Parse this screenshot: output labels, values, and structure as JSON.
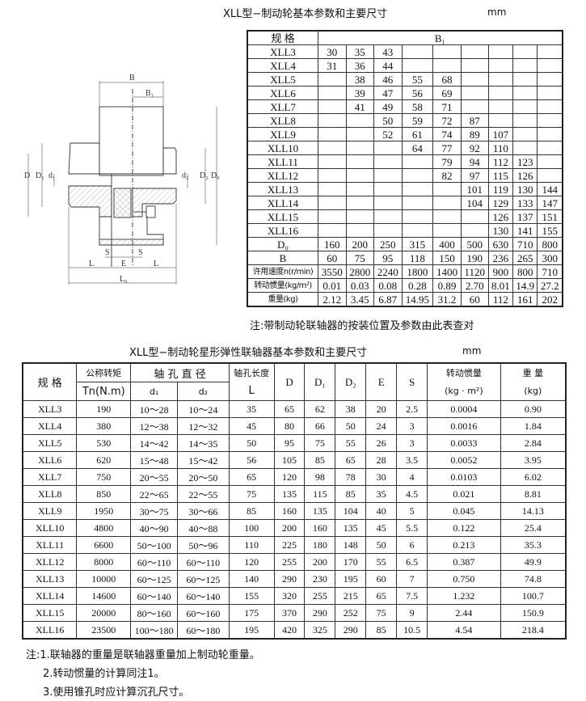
{
  "top": {
    "title": "XLL型−制动轮基本参数和主要尺寸",
    "unit": "mm",
    "header_label": "规 格",
    "header_b1": "B₁",
    "rows": [
      {
        "model": "XLL3",
        "values": [
          "30",
          "35",
          "43",
          "",
          "",
          "",
          "",
          "",
          ""
        ]
      },
      {
        "model": "XLL4",
        "values": [
          "31",
          "36",
          "44",
          "",
          "",
          "",
          "",
          "",
          ""
        ]
      },
      {
        "model": "XLL5",
        "values": [
          "",
          "38",
          "46",
          "55",
          "68",
          "",
          "",
          "",
          ""
        ]
      },
      {
        "model": "XLL6",
        "values": [
          "",
          "39",
          "47",
          "56",
          "69",
          "",
          "",
          "",
          ""
        ]
      },
      {
        "model": "XLL7",
        "values": [
          "",
          "41",
          "49",
          "58",
          "71",
          "",
          "",
          "",
          ""
        ]
      },
      {
        "model": "XLL8",
        "values": [
          "",
          "",
          "50",
          "59",
          "72",
          "87",
          "",
          "",
          ""
        ]
      },
      {
        "model": "XLL9",
        "values": [
          "",
          "",
          "52",
          "61",
          "74",
          "89",
          "107",
          "",
          ""
        ]
      },
      {
        "model": "XLL10",
        "values": [
          "",
          "",
          "",
          "64",
          "77",
          "92",
          "110",
          "",
          ""
        ]
      },
      {
        "model": "XLL11",
        "values": [
          "",
          "",
          "",
          "",
          "79",
          "94",
          "112",
          "123",
          ""
        ]
      },
      {
        "model": "XLL12",
        "values": [
          "",
          "",
          "",
          "",
          "82",
          "97",
          "115",
          "126",
          ""
        ]
      },
      {
        "model": "XLL13",
        "values": [
          "",
          "",
          "",
          "",
          "",
          "101",
          "119",
          "130",
          "144"
        ]
      },
      {
        "model": "XLL14",
        "values": [
          "",
          "",
          "",
          "",
          "",
          "104",
          "129",
          "133",
          "147"
        ]
      },
      {
        "model": "XLL15",
        "values": [
          "",
          "",
          "",
          "",
          "",
          "",
          "126",
          "137",
          "151"
        ]
      },
      {
        "model": "XLL16",
        "values": [
          "",
          "",
          "",
          "",
          "",
          "",
          "130",
          "141",
          "155"
        ]
      }
    ],
    "param_rows": [
      {
        "label": "D₀",
        "values": [
          "160",
          "200",
          "250",
          "315",
          "400",
          "500",
          "630",
          "710",
          "800"
        ]
      },
      {
        "label": "B",
        "values": [
          "60",
          "75",
          "95",
          "118",
          "150",
          "190",
          "236",
          "265",
          "300"
        ]
      },
      {
        "label": "许用速度n(r/min)",
        "values": [
          "3550",
          "2800",
          "2240",
          "1800",
          "1400",
          "1120",
          "900",
          "800",
          "710"
        ]
      },
      {
        "label": "转动惯量(kg/m²)",
        "values": [
          "0.01",
          "0.03",
          "0.08",
          "0.28",
          "0.89",
          "2.70",
          "8.01",
          "14.9",
          "27.2"
        ]
      },
      {
        "label": "重量(kg)",
        "values": [
          "2.12",
          "3.45",
          "6.87",
          "14.95",
          "31.2",
          "60",
          "112",
          "161",
          "202"
        ]
      }
    ],
    "note": "注:带制动轮联轴器的按装位置及参数由此表查对"
  },
  "drawing": {
    "labels": {
      "B": "B",
      "B1": "B₁",
      "D": "D",
      "D1": "D₁",
      "d1": "d₁",
      "d2": "d₂",
      "D2": "D₂",
      "D0": "D₀",
      "S": "S",
      "L": "L",
      "E": "E",
      "L0": "L₀"
    }
  },
  "bottom": {
    "title": "XLL型−制动轮星形弹性联轴器基本参数和主要尺寸",
    "unit": "mm",
    "headers": {
      "model": "规 格",
      "torque": "公称转矩",
      "torque_unit": "Tn(N.m)",
      "bore": "轴 孔 直 径",
      "d1": "d₁",
      "d2": "d₂",
      "length": "轴孔长度",
      "length_unit": "L",
      "D": "D",
      "D1": "D₁",
      "D2": "D₂",
      "E": "E",
      "S": "S",
      "inertia": "转动惯量",
      "inertia_unit": "(kg · m²)",
      "weight": "重 量",
      "weight_unit": "(kg)"
    },
    "rows": [
      [
        "XLL3",
        "190",
        "10～28",
        "10～24",
        "35",
        "65",
        "62",
        "38",
        "20",
        "2.5",
        "0.0004",
        "0.90"
      ],
      [
        "XLL4",
        "380",
        "12～38",
        "12～32",
        "45",
        "80",
        "66",
        "50",
        "24",
        "3",
        "0.0016",
        "1.84"
      ],
      [
        "XLL5",
        "530",
        "14～42",
        "14～35",
        "50",
        "95",
        "75",
        "55",
        "26",
        "3",
        "0.0033",
        "2.84"
      ],
      [
        "XLL6",
        "620",
        "15～48",
        "15～42",
        "56",
        "105",
        "85",
        "65",
        "28",
        "3.5",
        "0.0052",
        "3.95"
      ],
      [
        "XLL7",
        "750",
        "20～55",
        "20～50",
        "65",
        "120",
        "98",
        "78",
        "30",
        "4",
        "0.0103",
        "6.02"
      ],
      [
        "XLL8",
        "850",
        "22～65",
        "22～55",
        "75",
        "135",
        "115",
        "85",
        "35",
        "4.5",
        "0.021",
        "8.81"
      ],
      [
        "XLL9",
        "1950",
        "30～75",
        "30～66",
        "85",
        "160",
        "135",
        "104",
        "40",
        "5",
        "0.045",
        "14.13"
      ],
      [
        "XLL10",
        "4800",
        "40～90",
        "40～88",
        "100",
        "200",
        "160",
        "135",
        "45",
        "5.5",
        "0.122",
        "25.4"
      ],
      [
        "XLL11",
        "6600",
        "50～100",
        "50～96",
        "110",
        "225",
        "180",
        "148",
        "50",
        "6",
        "0.213",
        "35.3"
      ],
      [
        "XLL12",
        "8000",
        "60～110",
        "60～110",
        "120",
        "255",
        "200",
        "170",
        "55",
        "6.5",
        "0.387",
        "49.9"
      ],
      [
        "XLL13",
        "10000",
        "60～125",
        "60～125",
        "140",
        "290",
        "230",
        "195",
        "60",
        "7",
        "0.750",
        "74.8"
      ],
      [
        "XLL14",
        "14600",
        "60～140",
        "60～140",
        "155",
        "320",
        "255",
        "215",
        "65",
        "7.5",
        "1.232",
        "100.7"
      ],
      [
        "XLL15",
        "20000",
        "80～160",
        "60～160",
        "175",
        "370",
        "290",
        "252",
        "75",
        "9",
        "2.44",
        "150.9"
      ],
      [
        "XLL16",
        "23500",
        "100～180",
        "60～180",
        "195",
        "420",
        "325",
        "290",
        "85",
        "10.5",
        "4.54",
        "218.4"
      ]
    ],
    "notes": [
      "注:1.联轴器的重量是联轴器重量加上制动轮重量。",
      "2.转动惯量的计算同注1。",
      "3.使用锥孔时应计算沉孔尺寸。"
    ]
  }
}
